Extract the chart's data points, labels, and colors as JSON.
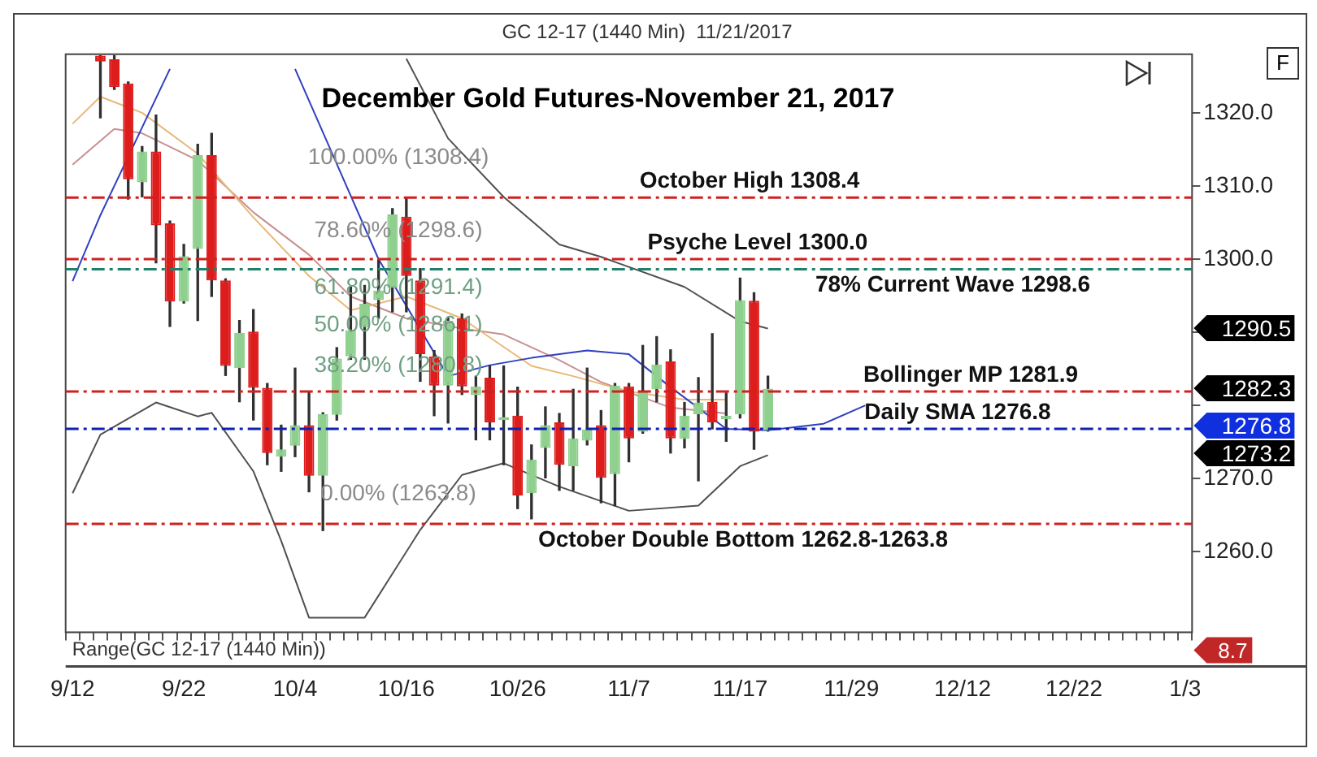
{
  "chart_data": {
    "type": "candlestick",
    "title": "December Gold Futures-November 21, 2017",
    "subtitle": "GC 12-17 (1440 Min)  11/21/2017",
    "categories": [
      "9/12",
      null,
      null,
      null,
      null,
      null,
      null,
      null,
      "9/22",
      null,
      null,
      null,
      null,
      null,
      null,
      null,
      "10/4",
      null,
      null,
      null,
      null,
      null,
      null,
      null,
      "10/16",
      null,
      null,
      null,
      null,
      null,
      null,
      null,
      "10/26",
      null,
      null,
      null,
      null,
      null,
      null,
      null,
      "11/7",
      null,
      null,
      null,
      null,
      null,
      null,
      null,
      "11/17",
      null,
      null,
      null,
      null,
      null,
      null,
      null,
      "11/29",
      null,
      null,
      null,
      null,
      null,
      null,
      null,
      "12/12",
      null,
      null,
      null,
      null,
      null,
      null,
      null,
      "12/22",
      null,
      null,
      null,
      null,
      null,
      null,
      null,
      "1/3"
    ],
    "ohlc": [
      null,
      null,
      [
        1327.8,
        1327.8,
        1319.3,
        1327.0
      ],
      [
        1327.3,
        1327.8,
        1323.2,
        1323.5
      ],
      [
        1324.0,
        1324.2,
        1308.2,
        1310.9
      ],
      [
        1310.5,
        1315.4,
        1308.5,
        1314.7
      ],
      [
        1314.7,
        1319.7,
        1299.5,
        1304.6
      ],
      [
        1304.9,
        1305.2,
        1290.8,
        1294.2
      ],
      [
        1294.2,
        1302.0,
        1294.0,
        1300.4
      ],
      [
        1301.4,
        1315.7,
        1291.6,
        1314.2
      ],
      [
        1314.2,
        1317.2,
        1294.9,
        1297.1
      ],
      [
        1297.1,
        1297.3,
        1284.1,
        1285.4
      ],
      [
        1285.1,
        1291.6,
        1280.5,
        1289.9
      ],
      [
        1290.1,
        1293.1,
        1278.0,
        1282.4
      ],
      [
        1282.4,
        1283.0,
        1271.9,
        1273.5
      ],
      [
        1273.0,
        1277.3,
        1271.0,
        1274.0
      ],
      [
        1274.5,
        1285.1,
        1273.0,
        1277.3
      ],
      [
        1277.3,
        1281.8,
        1268.2,
        1270.4
      ],
      [
        1270.4,
        1279.0,
        1262.9,
        1278.8
      ],
      [
        1278.7,
        1287.9,
        1278.0,
        1286.4
      ],
      [
        1286.7,
        1296.2,
        1286.3,
        1290.3
      ],
      [
        1290.7,
        1296.4,
        1286.3,
        1293.9
      ],
      [
        1294.4,
        1299.9,
        1291.9,
        1295.7
      ],
      [
        1296.1,
        1306.9,
        1292.8,
        1306.1
      ],
      [
        1305.8,
        1308.4,
        1292.8,
        1297.7
      ],
      [
        1297.1,
        1298.7,
        1283.3,
        1287.0
      ],
      [
        1286.7,
        1287.5,
        1278.6,
        1282.7
      ],
      [
        1282.7,
        1292.0,
        1277.6,
        1291.6
      ],
      [
        1291.9,
        1292.5,
        1281.5,
        1282.6
      ],
      [
        1281.4,
        1284.0,
        1275.3,
        1282.6
      ],
      [
        1283.8,
        1285.4,
        1275.3,
        1277.7
      ],
      [
        1278.0,
        1285.4,
        1271.9,
        1278.4
      ],
      [
        1278.6,
        1282.5,
        1265.9,
        1267.7
      ],
      [
        1268.0,
        1274.6,
        1264.5,
        1272.6
      ],
      [
        1274.2,
        1279.8,
        1270.1,
        1277.3
      ],
      [
        1277.7,
        1278.9,
        1268.4,
        1271.9
      ],
      [
        1271.7,
        1282.2,
        1268.4,
        1275.5
      ],
      [
        1275.2,
        1285.1,
        1274.6,
        1276.7
      ],
      [
        1277.3,
        1279.3,
        1266.7,
        1270.1
      ],
      [
        1270.6,
        1283.0,
        1266.3,
        1282.7
      ],
      [
        1282.6,
        1283.0,
        1272.3,
        1275.5
      ],
      [
        1276.4,
        1288.2,
        1276.2,
        1281.8
      ],
      [
        1282.2,
        1289.4,
        1280.5,
        1285.6
      ],
      [
        1286.0,
        1287.6,
        1273.5,
        1275.5
      ],
      [
        1275.4,
        1280.4,
        1274.2,
        1278.6
      ],
      [
        1278.8,
        1283.8,
        1269.7,
        1280.4
      ],
      [
        1280.5,
        1289.8,
        1276.8,
        1277.7
      ],
      [
        1278.1,
        1281.7,
        1275.1,
        1278.6
      ],
      [
        1278.8,
        1297.4,
        1278.3,
        1294.4
      ],
      [
        1294.3,
        1295.4,
        1274.0,
        1276.4
      ],
      [
        1276.6,
        1284.0,
        1276.5,
        1282.3
      ],
      null,
      null,
      null,
      null,
      null,
      null,
      null,
      null,
      null,
      null,
      null,
      null,
      null,
      null,
      null,
      null,
      null,
      null,
      null,
      null,
      null,
      null,
      null,
      null,
      null,
      null,
      null,
      null,
      null,
      null
    ],
    "colors": [
      null,
      null,
      "#dd1c1c",
      "#dd1c1c",
      "#dd1c1c",
      "#8fd08f",
      "#dd1c1c",
      "#dd1c1c",
      "#8fd08f",
      "#8fd08f",
      "#dd1c1c",
      "#dd1c1c",
      "#8fd08f",
      "#dd1c1c",
      "#dd1c1c",
      "#8fd08f",
      "#8fd08f",
      "#dd1c1c",
      "#8fd08f",
      "#8fd08f",
      "#8fd08f",
      "#8fd08f",
      "#8fd08f",
      "#8fd08f",
      "#dd1c1c",
      "#dd1c1c",
      "#dd1c1c",
      "#8fd08f",
      "#dd1c1c",
      "#8fd08f",
      "#dd1c1c",
      "#8fd08f",
      "#dd1c1c",
      "#8fd08f",
      "#8fd08f",
      "#dd1c1c",
      "#8fd08f",
      "#8fd08f",
      "#dd1c1c",
      "#8fd08f",
      "#dd1c1c",
      "#8fd08f",
      "#8fd08f",
      "#dd1c1c",
      "#8fd08f",
      "#8fd08f",
      "#dd1c1c",
      "#8fd08f",
      "#8fd08f",
      "#dd1c1c",
      "#8fd08f",
      null,
      null,
      null,
      null,
      null,
      null,
      null,
      null,
      null,
      null,
      null,
      null,
      null,
      null,
      null,
      null,
      null,
      null,
      null,
      null,
      null,
      null,
      null,
      null,
      null,
      null,
      null,
      null,
      null,
      null
    ],
    "series": [
      {
        "type": "line",
        "color": "#505050",
        "values": [
          null,
          null,
          null,
          null,
          null,
          null,
          null,
          null,
          null,
          null,
          null,
          null,
          null,
          null,
          null,
          null,
          null,
          null,
          null,
          null,
          null,
          null,
          null,
          null,
          1327.4,
          null,
          null,
          1316.5,
          null,
          null,
          null,
          1308.5,
          null,
          null,
          null,
          1302,
          null,
          null,
          1300.3,
          null,
          null,
          null,
          null,
          null,
          1296.2,
          null,
          null,
          null,
          1291.5,
          null,
          1290.5,
          null,
          null,
          null,
          null,
          null,
          null,
          null,
          null,
          null,
          null,
          null,
          null,
          null,
          null,
          null,
          null,
          null,
          null,
          null,
          null,
          null,
          null,
          null,
          null,
          null,
          null,
          null,
          null,
          null,
          null
        ]
      },
      {
        "type": "line",
        "color": "#505050",
        "values": [
          1268,
          null,
          1276,
          null,
          null,
          null,
          1280.4,
          null,
          null,
          1278.5,
          1279,
          null,
          null,
          1271,
          null,
          1261.5,
          null,
          1251,
          null,
          null,
          null,
          1251,
          null,
          null,
          null,
          1263,
          null,
          null,
          1270.5,
          null,
          null,
          1272.1,
          null,
          null,
          null,
          1268.9,
          null,
          null,
          null,
          null,
          1265.6,
          null,
          null,
          null,
          null,
          1266.3,
          null,
          null,
          1271.7,
          null,
          1273.2,
          null,
          null,
          null,
          null,
          null,
          null,
          null,
          null,
          null,
          null,
          null,
          null,
          null,
          null,
          null,
          null,
          null,
          null,
          null,
          null,
          null,
          null,
          null,
          null,
          null,
          null,
          null,
          null,
          null,
          null
        ]
      },
      {
        "type": "line",
        "color": "#3040c0",
        "values": [
          1297,
          null,
          1306,
          null,
          null,
          null,
          null,
          1326,
          null,
          null,
          null,
          null,
          null,
          null,
          null,
          null,
          null,
          null,
          null,
          null,
          null,
          null,
          null,
          null,
          null,
          null,
          null,
          null,
          null,
          null,
          null,
          null,
          null,
          null,
          null,
          null,
          null,
          null,
          null,
          null,
          null,
          null,
          null,
          null,
          null,
          null,
          null,
          null,
          null,
          null,
          null,
          null,
          null,
          null,
          null,
          null,
          null,
          null,
          null,
          null,
          null,
          null,
          null,
          null,
          null,
          null,
          null,
          null,
          null,
          null,
          null,
          null,
          null,
          null,
          null,
          null,
          null,
          null,
          null,
          null,
          null
        ]
      },
      {
        "type": "line",
        "color": "#3040c0",
        "values": [
          null,
          null,
          null,
          null,
          null,
          null,
          null,
          null,
          null,
          null,
          null,
          null,
          null,
          null,
          null,
          null,
          1326,
          null,
          null,
          1313,
          null,
          null,
          1300,
          null,
          null,
          null,
          null,
          1284,
          null,
          null,
          1285.5,
          null,
          null,
          1286.5,
          null,
          null,
          null,
          1287.5,
          null,
          null,
          1287,
          null,
          null,
          1282.5,
          null,
          null,
          null,
          1276.8,
          null,
          null,
          1276.6,
          null,
          null,
          null,
          1277.5,
          null,
          null,
          1280,
          null,
          null,
          null,
          null,
          null,
          null,
          null,
          null,
          null,
          null,
          null,
          null,
          null,
          null,
          null,
          null,
          null,
          null,
          null,
          null,
          null,
          null,
          null
        ]
      },
      {
        "type": "line",
        "color": "#e8b878",
        "values": [
          1318.5,
          null,
          1322.2,
          null,
          null,
          1320,
          null,
          null,
          null,
          1314.4,
          null,
          null,
          null,
          1305.7,
          null,
          null,
          null,
          1297.7,
          null,
          null,
          1293,
          null,
          null,
          null,
          1294.9,
          null,
          null,
          null,
          1291.9,
          null,
          null,
          null,
          null,
          1285.4,
          null,
          null,
          1284,
          null,
          null,
          null,
          1281.9,
          null,
          null,
          null,
          1280.8,
          null,
          null,
          1280.8,
          null,
          null,
          null,
          null,
          null,
          null,
          null,
          null,
          null,
          null,
          null,
          null,
          null,
          null,
          null,
          null,
          null,
          null,
          null,
          null,
          null,
          null,
          null,
          null,
          null,
          null,
          null,
          null,
          null,
          null,
          null,
          null,
          null
        ]
      },
      {
        "type": "line",
        "color": "#c89090",
        "values": [
          1312.9,
          null,
          null,
          1317.8,
          null,
          1317.2,
          null,
          null,
          null,
          1313.5,
          null,
          null,
          null,
          1306.4,
          null,
          null,
          null,
          1300.6,
          null,
          null,
          1294.9,
          null,
          null,
          null,
          1291.9,
          null,
          null,
          null,
          1290.5,
          null,
          null,
          1289.7,
          null,
          null,
          null,
          1286.2,
          null,
          null,
          1283.2,
          null,
          null,
          null,
          null,
          1279.7,
          null,
          null,
          null,
          1278.9,
          null,
          null,
          null,
          null,
          null,
          null,
          null,
          null,
          null,
          null,
          null,
          null,
          null,
          null,
          null,
          null,
          null,
          null,
          null,
          null,
          null,
          null,
          null,
          null,
          null,
          null,
          null,
          null,
          null,
          null,
          null,
          null,
          null
        ]
      }
    ],
    "ylim": [
      1249,
      1328
    ],
    "yticks": [
      {
        "value": 1260,
        "label": "1260.0"
      },
      {
        "value": 1270,
        "label": "1270.0"
      },
      {
        "value": 1280,
        "label": null
      },
      {
        "value": 1290,
        "label": null
      },
      {
        "value": 1300,
        "label": "1300.0"
      },
      {
        "value": 1310,
        "label": "1310.0"
      },
      {
        "value": 1320,
        "label": "1320.0"
      }
    ],
    "ref_lines": [
      {
        "axis": "y",
        "value": 1308.4,
        "label": "October High 1308.4",
        "color": "#d02020",
        "line_style": "dashed"
      },
      {
        "axis": "y",
        "value": 1300.0,
        "label": "Psyche Level 1300.0",
        "color": "#d02020",
        "line_style": "dashed"
      },
      {
        "axis": "y",
        "value": 1298.6,
        "label": "78% Current Wave 1298.6",
        "color": "#20806a",
        "line_style": "dashed"
      },
      {
        "axis": "y",
        "value": 1281.9,
        "label": "Bollinger MP 1281.9",
        "color": "#d02020",
        "line_style": "dashed"
      },
      {
        "axis": "y",
        "value": 1276.8,
        "label": "Daily SMA 1276.8",
        "color": "#1020b0",
        "line_style": "dashed"
      },
      {
        "axis": "y",
        "value": 1263.8,
        "label": "October Double Bottom 1262.8-1263.8",
        "color": "#d02020",
        "line_style": "dashed"
      }
    ],
    "annotations": [
      "100.00% (1308.4)",
      "78.60% (1298.6)",
      "61.80% (1291.4)",
      "50.00% (1286.1)",
      "38.20% (1280.8)",
      "0.00% (1263.8)",
      "1290.5",
      "1282.3",
      "1276.8",
      "1273.2",
      "8.7",
      "Range(GC 12-17 (1440 Min))",
      "F"
    ]
  }
}
